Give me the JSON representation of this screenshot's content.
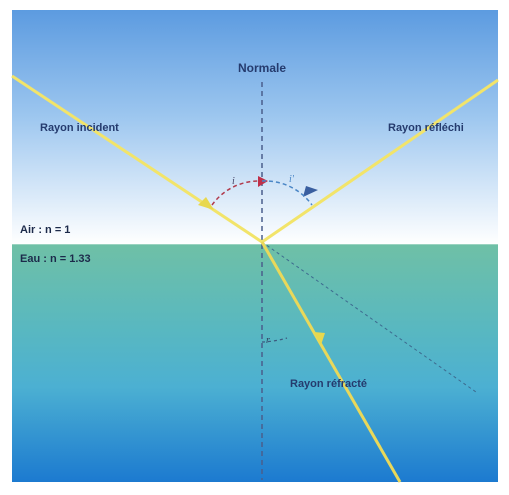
{
  "diagram": {
    "normal_label": "Normale",
    "incident_label": "Rayon incident",
    "reflected_label": "Rayon réfléchi",
    "refracted_label": "Rayon réfracté",
    "medium_top": "Air : n = 1",
    "medium_bottom": "Eau : n = 1.33",
    "angle_incidence": "i",
    "angle_reflection": "i'",
    "angle_refraction": "r",
    "colors": {
      "sky_top": "#5c9be0",
      "sky_bottom": "#ffffff",
      "water_top": "#6fc0a6",
      "water_mid": "#4cb0d2",
      "water_bottom": "#1c7ad0",
      "ray": "#f2e46a",
      "normal": "#4a5e8c",
      "arc_incidence": "#b13a4c",
      "arc_reflection": "#4a86c6",
      "text": "#253b6e"
    }
  }
}
